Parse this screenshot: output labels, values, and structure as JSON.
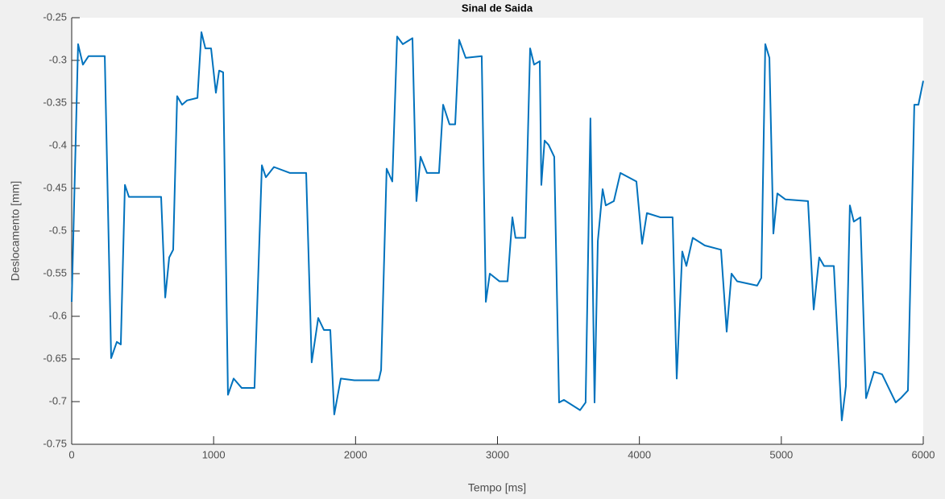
{
  "chart_data": {
    "type": "line",
    "title": "Sinal de Saida",
    "xlabel": "Tempo [ms]",
    "ylabel": "Deslocamento [mm]",
    "x": [
      0,
      45,
      79,
      119,
      233,
      278,
      318,
      346,
      375,
      403,
      630,
      659,
      687,
      715,
      743,
      778,
      812,
      886,
      914,
      942,
      982,
      1016,
      1039,
      1067,
      1101,
      1141,
      1198,
      1288,
      1340,
      1368,
      1425,
      1538,
      1652,
      1691,
      1737,
      1777,
      1822,
      1850,
      1896,
      1992,
      2163,
      2180,
      2219,
      2259,
      2293,
      2333,
      2401,
      2429,
      2458,
      2503,
      2588,
      2617,
      2662,
      2702,
      2730,
      2776,
      2889,
      2918,
      2946,
      3014,
      3071,
      3105,
      3127,
      3196,
      3230,
      3258,
      3298,
      3309,
      3332,
      3360,
      3400,
      3434,
      3468,
      3582,
      3621,
      3655,
      3684,
      3707,
      3741,
      3763,
      3820,
      3866,
      3979,
      4019,
      4053,
      4149,
      4234,
      4263,
      4302,
      4331,
      4376,
      4461,
      4575,
      4615,
      4649,
      4689,
      4830,
      4859,
      4887,
      4916,
      4944,
      4972,
      5029,
      5188,
      5228,
      5267,
      5301,
      5370,
      5426,
      5455,
      5483,
      5511,
      5557,
      5597,
      5653,
      5710,
      5806,
      5841,
      5892,
      5937,
      5966,
      6000
    ],
    "series": [
      {
        "color": "#0072bd",
        "values": [
          -0.583,
          -0.281,
          -0.305,
          -0.295,
          -0.295,
          -0.649,
          -0.63,
          -0.633,
          -0.446,
          -0.46,
          -0.46,
          -0.578,
          -0.531,
          -0.522,
          -0.342,
          -0.352,
          -0.347,
          -0.344,
          -0.267,
          -0.286,
          -0.286,
          -0.338,
          -0.312,
          -0.314,
          -0.692,
          -0.673,
          -0.684,
          -0.684,
          -0.423,
          -0.437,
          -0.425,
          -0.432,
          -0.432,
          -0.654,
          -0.602,
          -0.616,
          -0.616,
          -0.715,
          -0.673,
          -0.675,
          -0.675,
          -0.663,
          -0.427,
          -0.442,
          -0.272,
          -0.281,
          -0.274,
          -0.465,
          -0.413,
          -0.432,
          -0.432,
          -0.352,
          -0.375,
          -0.375,
          -0.276,
          -0.297,
          -0.295,
          -0.583,
          -0.55,
          -0.559,
          -0.559,
          -0.484,
          -0.508,
          -0.508,
          -0.286,
          -0.305,
          -0.301,
          -0.446,
          -0.394,
          -0.399,
          -0.413,
          -0.701,
          -0.698,
          -0.71,
          -0.701,
          -0.368,
          -0.701,
          -0.512,
          -0.451,
          -0.47,
          -0.465,
          -0.432,
          -0.442,
          -0.515,
          -0.479,
          -0.484,
          -0.484,
          -0.673,
          -0.524,
          -0.541,
          -0.508,
          -0.517,
          -0.522,
          -0.618,
          -0.55,
          -0.559,
          -0.564,
          -0.555,
          -0.281,
          -0.297,
          -0.503,
          -0.456,
          -0.463,
          -0.465,
          -0.592,
          -0.531,
          -0.541,
          -0.541,
          -0.722,
          -0.682,
          -0.47,
          -0.489,
          -0.484,
          -0.696,
          -0.665,
          -0.668,
          -0.701,
          -0.696,
          -0.687,
          -0.352,
          -0.352,
          -0.324
        ]
      }
    ],
    "xlim": [
      0,
      6000
    ],
    "xticks": [
      0,
      1000,
      2000,
      3000,
      4000,
      5000,
      6000
    ],
    "ylim": [
      -0.75,
      -0.25
    ],
    "yticks": [
      -0.75,
      -0.7,
      -0.65,
      -0.6,
      -0.55,
      -0.5,
      -0.45,
      -0.4,
      -0.35,
      -0.3,
      -0.25
    ]
  }
}
